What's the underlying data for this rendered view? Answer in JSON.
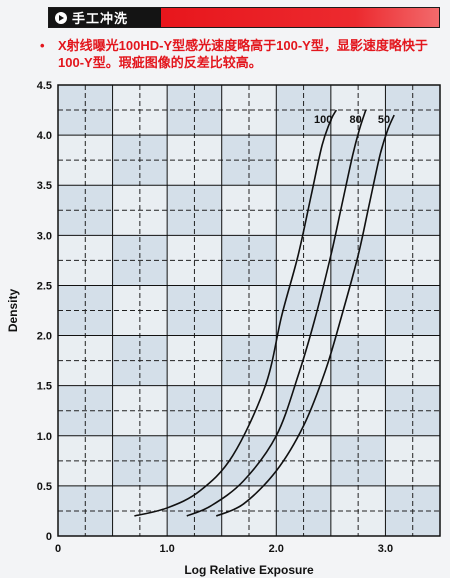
{
  "header": {
    "title": "手工冲洗"
  },
  "note": {
    "bullet": "•",
    "text": "X射线曝光100HD-Y型感光速度略高于100-Y型，显影速度略快于100-Y型。瑕疵图像的反差比较高。"
  },
  "chart_data": {
    "type": "line",
    "xlabel": "Log Relative Exposure",
    "ylabel": "Density",
    "xlim": [
      0,
      3.5
    ],
    "ylim": [
      0,
      4.5
    ],
    "x_ticks": [
      "0",
      "1.0",
      "2.0",
      "3.0"
    ],
    "x_tick_values": [
      0,
      1.0,
      2.0,
      3.0
    ],
    "y_ticks": [
      "0",
      "0.5",
      "1.0",
      "1.5",
      "2.0",
      "2.5",
      "3.0",
      "3.5",
      "4.0",
      "4.5"
    ],
    "y_tick_values": [
      0,
      0.5,
      1.0,
      1.5,
      2.0,
      2.5,
      3.0,
      3.5,
      4.0,
      4.5
    ],
    "grid": true,
    "series": [
      {
        "name": "100",
        "x": [
          0.7,
          1.0,
          1.3,
          1.6,
          1.9,
          2.05,
          2.2,
          2.32,
          2.42,
          2.5,
          2.55
        ],
        "y": [
          0.2,
          0.28,
          0.45,
          0.8,
          1.5,
          2.2,
          2.8,
          3.4,
          3.9,
          4.15,
          4.25
        ]
      },
      {
        "name": "80",
        "x": [
          1.18,
          1.4,
          1.7,
          2.0,
          2.2,
          2.35,
          2.5,
          2.6,
          2.7,
          2.76,
          2.82
        ],
        "y": [
          0.2,
          0.3,
          0.55,
          1.0,
          1.6,
          2.15,
          2.8,
          3.3,
          3.8,
          4.05,
          4.25
        ]
      },
      {
        "name": "50",
        "x": [
          1.45,
          1.7,
          2.0,
          2.25,
          2.45,
          2.6,
          2.75,
          2.85,
          2.95,
          3.02,
          3.08
        ],
        "y": [
          0.2,
          0.32,
          0.65,
          1.1,
          1.65,
          2.2,
          2.8,
          3.3,
          3.8,
          4.05,
          4.2
        ]
      }
    ]
  }
}
